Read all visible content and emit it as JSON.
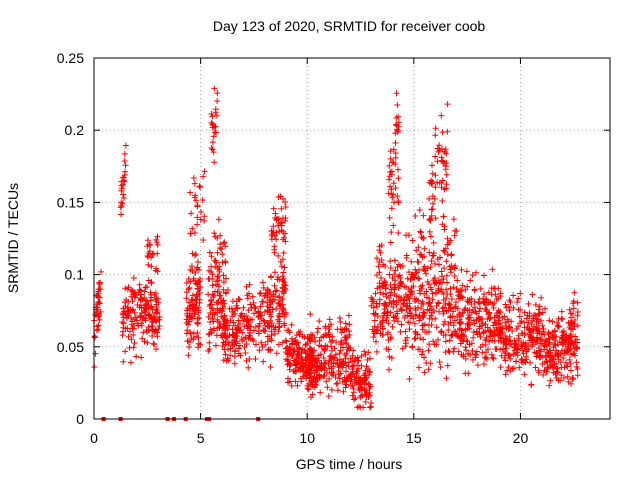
{
  "chart_data": {
    "type": "scatter",
    "title": "Day 123 of 2020, SRMTID for receiver coob",
    "xlabel": "GPS time / hours",
    "ylabel": "SRMTID / TECUs",
    "xlim": [
      0,
      24.2
    ],
    "ylim": [
      0,
      0.25
    ],
    "x_ticks": [
      0,
      5,
      10,
      15,
      20
    ],
    "y_ticks": [
      0,
      0.05,
      0.1,
      0.15,
      0.2,
      0.25
    ],
    "x_tick_labels": [
      "0",
      "5",
      "10",
      "15",
      "20"
    ],
    "y_tick_labels": [
      "0",
      "0.05",
      "0.1",
      "0.15",
      "0.2",
      "0.25"
    ],
    "grid": true,
    "marker": "plus",
    "color": "#ff0000",
    "zero_markers_x": [
      0.45,
      1.25,
      3.45,
      3.75,
      4.3,
      5.3,
      5.4,
      7.7
    ],
    "segments": [
      {
        "x": [
          0.0,
          0.35
        ],
        "y": [
          0.055,
          0.098
        ],
        "spread": 0.018,
        "n": 40
      },
      {
        "x": [
          1.25,
          1.5
        ],
        "y": [
          0.15,
          0.178
        ],
        "spread": 0.012,
        "n": 22
      },
      {
        "x": [
          1.3,
          3.1
        ],
        "y": [
          0.07,
          0.075
        ],
        "spread": 0.018,
        "n": 180
      },
      {
        "x": [
          2.5,
          3.0
        ],
        "y": [
          0.11,
          0.115
        ],
        "spread": 0.01,
        "n": 20
      },
      {
        "x": [
          4.3,
          5.0
        ],
        "y": [
          0.075,
          0.082
        ],
        "spread": 0.025,
        "n": 100
      },
      {
        "x": [
          4.5,
          5.2
        ],
        "y": [
          0.14,
          0.15
        ],
        "spread": 0.02,
        "n": 25
      },
      {
        "x": [
          5.3,
          6.2
        ],
        "y": [
          0.085,
          0.09
        ],
        "spread": 0.03,
        "n": 110
      },
      {
        "x": [
          5.5,
          5.8
        ],
        "y": [
          0.19,
          0.222
        ],
        "spread": 0.015,
        "n": 22
      },
      {
        "x": [
          6.0,
          7.6
        ],
        "y": [
          0.06,
          0.065
        ],
        "spread": 0.02,
        "n": 150
      },
      {
        "x": [
          7.7,
          9.0
        ],
        "y": [
          0.07,
          0.075
        ],
        "spread": 0.022,
        "n": 140
      },
      {
        "x": [
          8.3,
          9.0
        ],
        "y": [
          0.12,
          0.125
        ],
        "spread": 0.022,
        "n": 50
      },
      {
        "x": [
          9.0,
          10.5
        ],
        "y": [
          0.045,
          0.04
        ],
        "spread": 0.015,
        "n": 170
      },
      {
        "x": [
          10.0,
          12.0
        ],
        "y": [
          0.04,
          0.045
        ],
        "spread": 0.018,
        "n": 200
      },
      {
        "x": [
          12.0,
          13.0
        ],
        "y": [
          0.03,
          0.025
        ],
        "spread": 0.015,
        "n": 110
      },
      {
        "x": [
          13.0,
          15.0
        ],
        "y": [
          0.075,
          0.085
        ],
        "spread": 0.03,
        "n": 220
      },
      {
        "x": [
          13.8,
          14.3
        ],
        "y": [
          0.15,
          0.2
        ],
        "spread": 0.03,
        "n": 45
      },
      {
        "x": [
          15.0,
          17.0
        ],
        "y": [
          0.08,
          0.09
        ],
        "spread": 0.035,
        "n": 240
      },
      {
        "x": [
          15.7,
          16.6
        ],
        "y": [
          0.155,
          0.17
        ],
        "spread": 0.03,
        "n": 60
      },
      {
        "x": [
          17.0,
          19.0
        ],
        "y": [
          0.07,
          0.065
        ],
        "spread": 0.022,
        "n": 220
      },
      {
        "x": [
          19.0,
          21.0
        ],
        "y": [
          0.06,
          0.055
        ],
        "spread": 0.02,
        "n": 220
      },
      {
        "x": [
          21.0,
          22.7
        ],
        "y": [
          0.045,
          0.05
        ],
        "spread": 0.018,
        "n": 190
      },
      {
        "x": [
          22.3,
          22.7
        ],
        "y": [
          0.065,
          0.075
        ],
        "spread": 0.01,
        "n": 20
      }
    ]
  }
}
